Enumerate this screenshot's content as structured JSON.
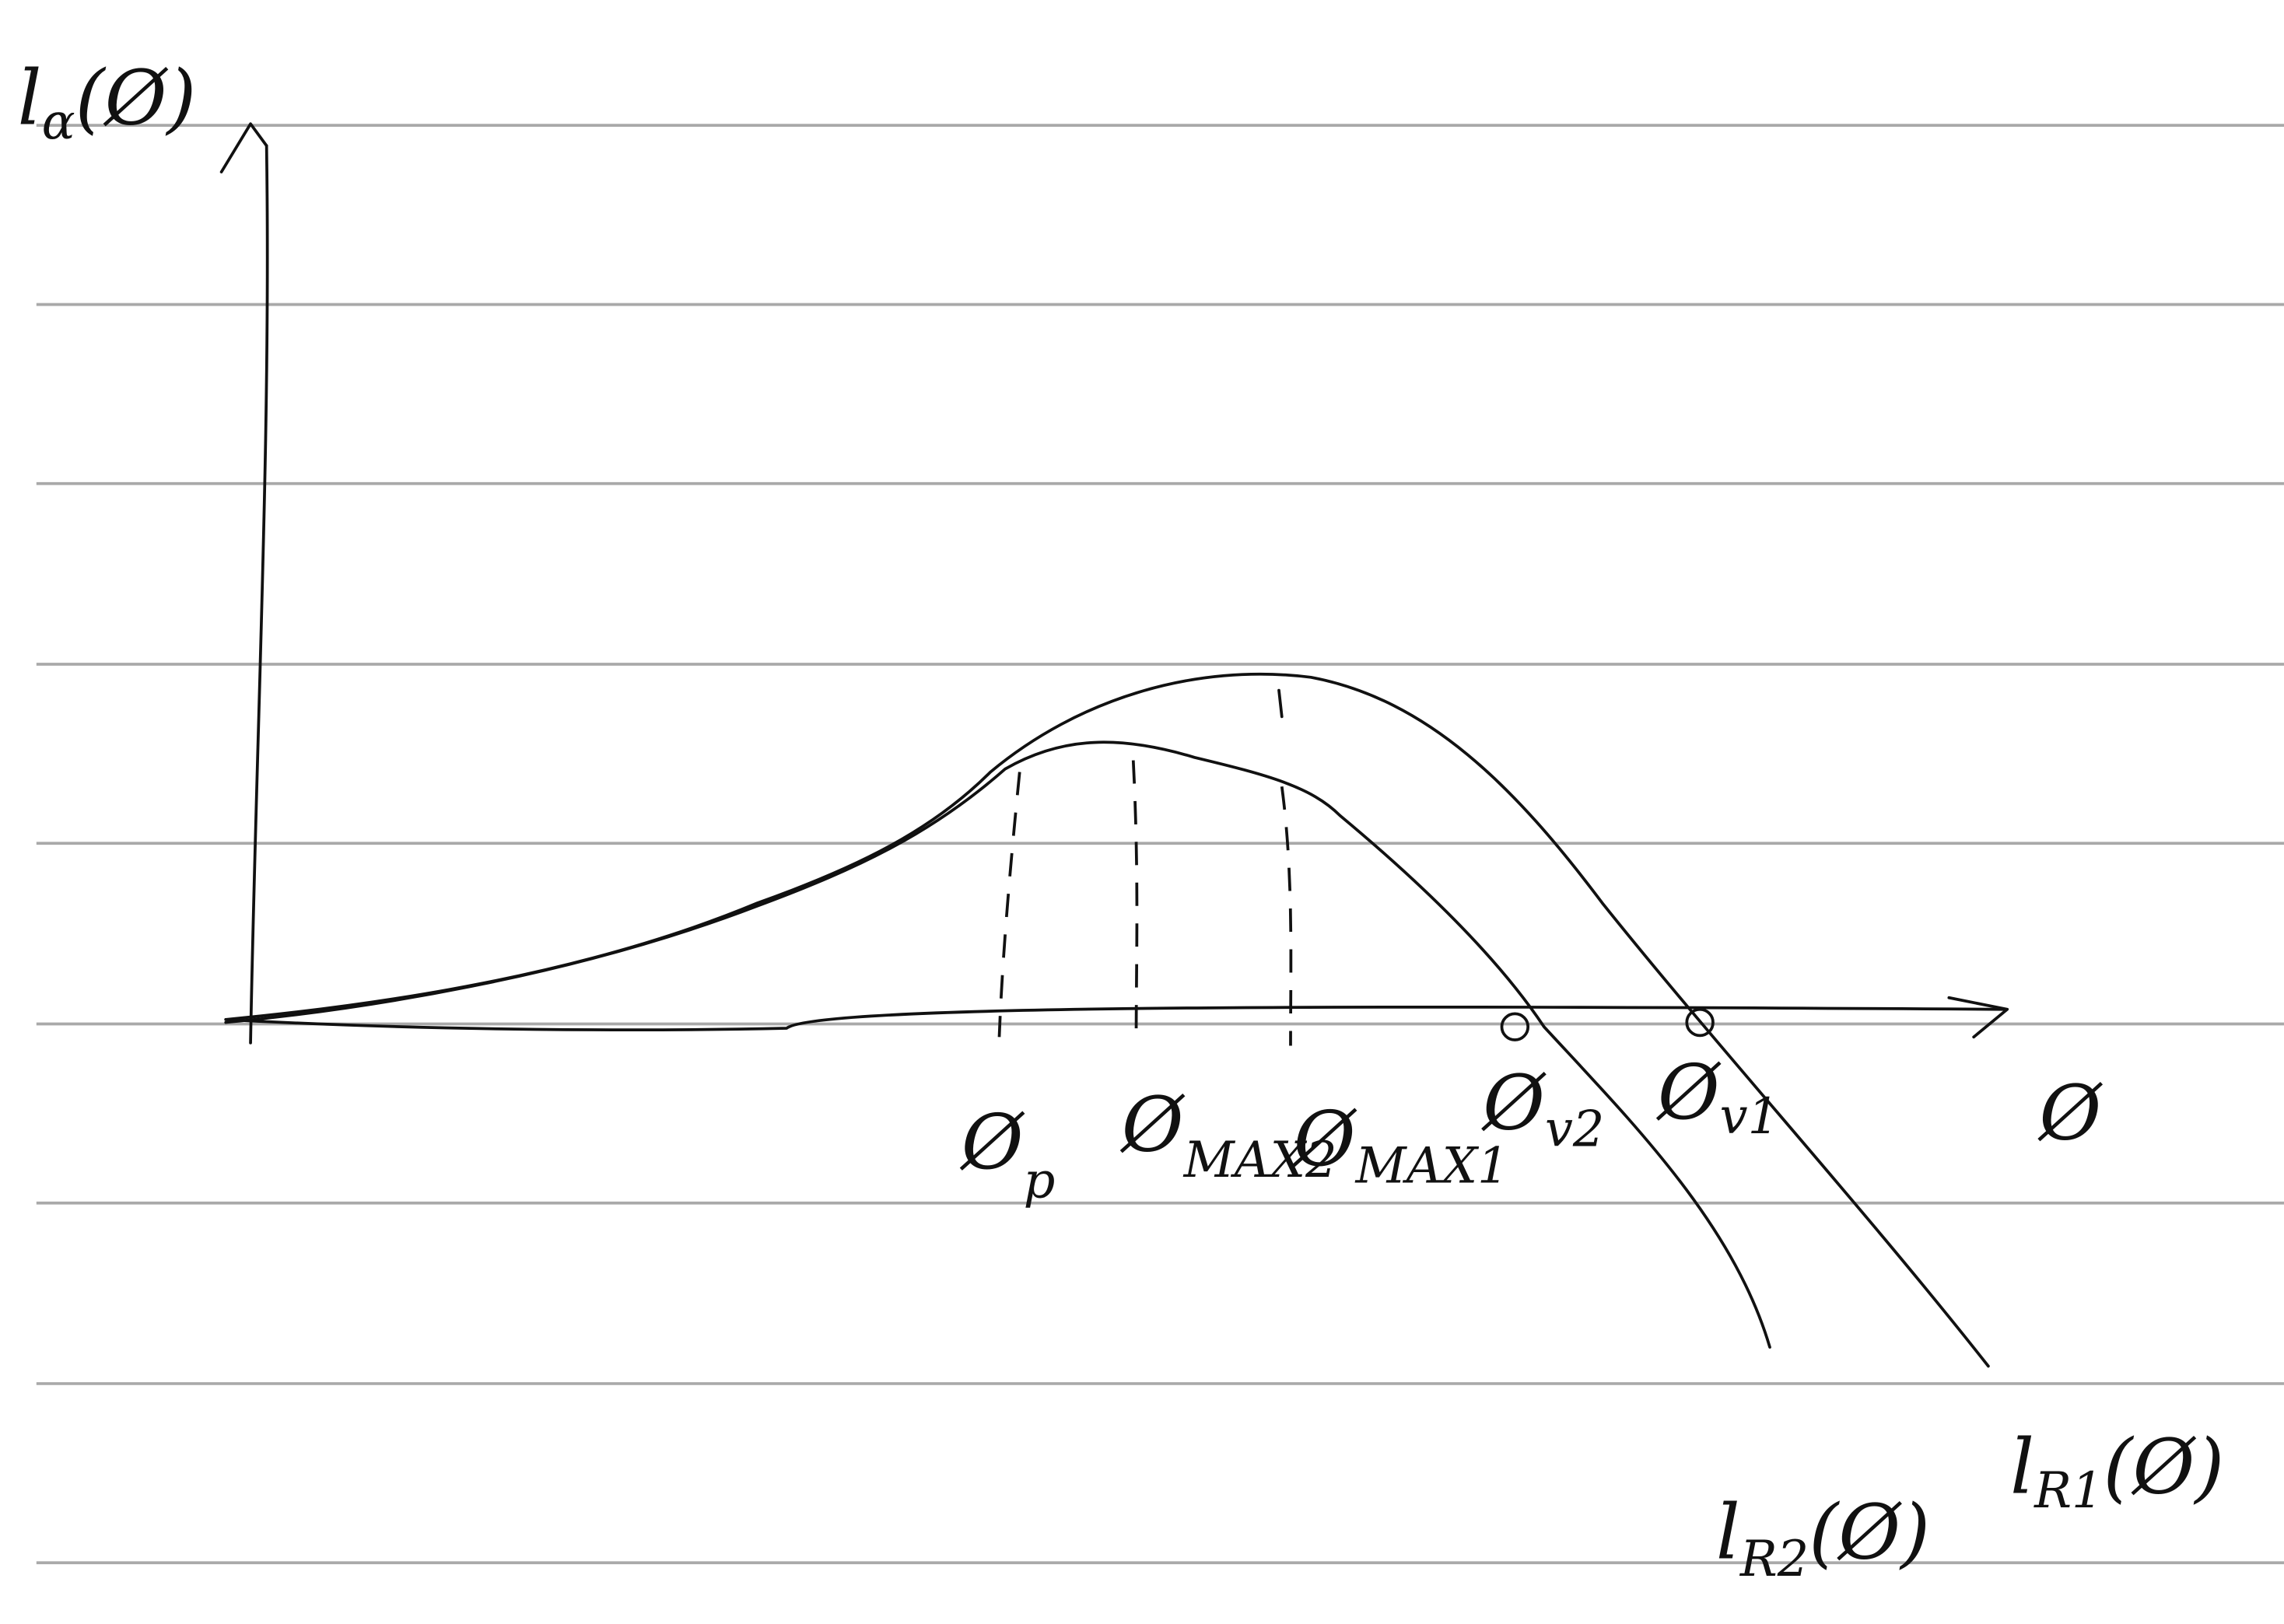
{
  "y_axis_label": {
    "symbol": "l",
    "subscript": "α",
    "argument": "(Ø)"
  },
  "x_axis_label": "Ø",
  "markers": [
    {
      "symbol": "Ø",
      "subscript": "p"
    },
    {
      "symbol": "Ø",
      "subscript": "MAX2"
    },
    {
      "symbol": "Ø",
      "subscript": "MAX1"
    },
    {
      "symbol": "Ø",
      "subscript": "v2"
    },
    {
      "symbol": "Ø",
      "subscript": "v1"
    }
  ],
  "curves": [
    {
      "symbol": "l",
      "subscript": "R2",
      "argument": "(Ø)"
    },
    {
      "symbol": "l",
      "subscript": "R1",
      "argument": "(Ø)"
    }
  ]
}
